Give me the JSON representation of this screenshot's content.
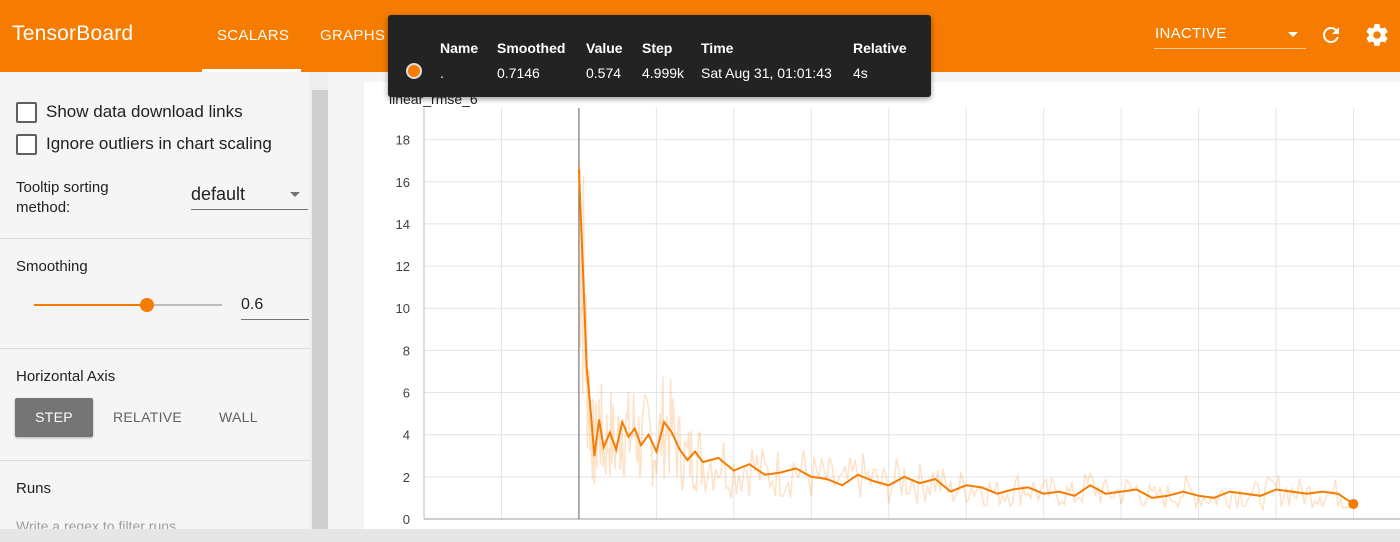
{
  "header": {
    "brand": "TensorBoard",
    "tabs": [
      {
        "label": "SCALARS",
        "active": true
      },
      {
        "label": "GRAPHS",
        "active": false
      }
    ],
    "status_select": "INACTIVE",
    "accent_color": "#f57c00"
  },
  "sidebar": {
    "checkboxes": [
      {
        "label": "Show data download links",
        "checked": false
      },
      {
        "label": "Ignore outliers in chart scaling",
        "checked": false
      }
    ],
    "tooltip_sorting": {
      "label_line1": "Tooltip sorting",
      "label_line2": "method:",
      "value": "default"
    },
    "smoothing": {
      "title": "Smoothing",
      "value": "0.6",
      "slider_fraction": 0.6
    },
    "horizontal_axis": {
      "title": "Horizontal Axis",
      "options": [
        "STEP",
        "RELATIVE",
        "WALL"
      ],
      "selected": "STEP"
    },
    "runs": {
      "title": "Runs",
      "filter_placeholder": "Write a regex to filter runs"
    }
  },
  "tooltip": {
    "headers": [
      "Name",
      "Smoothed",
      "Value",
      "Step",
      "Time",
      "Relative"
    ],
    "row": {
      "name": ".",
      "smoothed": "0.7146",
      "value": "0.574",
      "step": "4.999k",
      "time": "Sat Aug 31, 01:01:43",
      "relative": "4s"
    }
  },
  "chart_data": {
    "type": "line",
    "title": "linear_rmse_6",
    "xlabel": "",
    "ylabel": "",
    "ylim": [
      0,
      19.5
    ],
    "xlim": [
      -1000,
      5300
    ],
    "yticks": [
      0,
      2,
      4,
      6,
      8,
      10,
      12,
      14,
      16,
      18
    ],
    "grid": true,
    "series": [
      {
        "color": "#f57c00",
        "x": [
          0,
          25,
          50,
          75,
          100,
          130,
          160,
          200,
          240,
          280,
          320,
          360,
          400,
          450,
          500,
          550,
          600,
          650,
          700,
          750,
          800,
          900,
          1000,
          1100,
          1200,
          1300,
          1400,
          1500,
          1600,
          1700,
          1800,
          1900,
          2000,
          2100,
          2200,
          2300,
          2400,
          2500,
          2600,
          2700,
          2800,
          2900,
          3000,
          3100,
          3200,
          3300,
          3400,
          3500,
          3600,
          3700,
          3800,
          3900,
          4000,
          4100,
          4200,
          4300,
          4400,
          4500,
          4600,
          4700,
          4800,
          4900,
          4999
        ],
        "y": [
          16.6,
          12.0,
          7.2,
          5.2,
          3.0,
          4.7,
          3.4,
          4.1,
          3.3,
          4.6,
          3.9,
          4.3,
          3.5,
          4.0,
          3.2,
          4.6,
          4.1,
          3.3,
          2.8,
          3.2,
          2.7,
          2.9,
          2.3,
          2.6,
          2.1,
          2.2,
          2.4,
          2.0,
          1.9,
          1.6,
          2.1,
          1.8,
          1.6,
          2.0,
          1.7,
          1.9,
          1.3,
          1.6,
          1.5,
          1.2,
          1.4,
          1.5,
          1.2,
          1.3,
          1.1,
          1.6,
          1.2,
          1.3,
          1.4,
          1.0,
          1.1,
          1.3,
          1.1,
          1.0,
          1.3,
          1.2,
          1.1,
          1.4,
          1.3,
          1.2,
          1.3,
          1.2,
          0.7146
        ]
      }
    ]
  }
}
